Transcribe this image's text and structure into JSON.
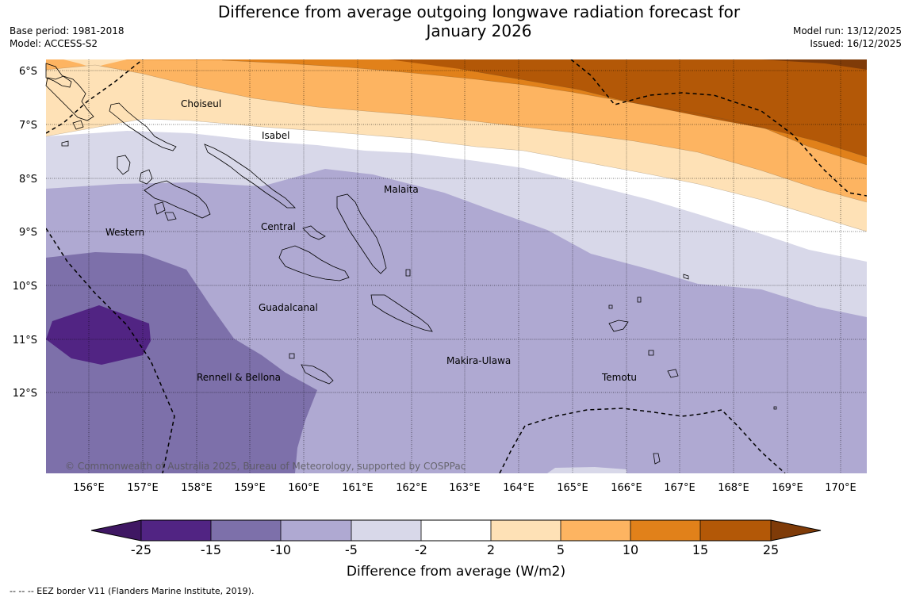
{
  "title": {
    "line1": "Difference from average outgoing longwave radiation forecast for",
    "line2": "January 2026"
  },
  "meta_left": {
    "base_period": "Base period: 1981-2018",
    "model": "Model: ACCESS-S2"
  },
  "meta_right": {
    "model_run": "Model run: 13/12/2025",
    "issued": "Issued: 16/12/2025"
  },
  "map": {
    "lat_labels": [
      "6°S",
      "7°S",
      "8°S",
      "9°S",
      "10°S",
      "11°S",
      "12°S"
    ],
    "lon_labels": [
      "156°E",
      "157°E",
      "158°E",
      "159°E",
      "160°E",
      "161°E",
      "162°E",
      "163°E",
      "164°E",
      "165°E",
      "166°E",
      "167°E",
      "168°E",
      "169°E",
      "170°E"
    ],
    "provinces": [
      "Choiseul",
      "Isabel",
      "Malaita",
      "Western",
      "Central",
      "Guadalcanal",
      "Makira-Ulawa",
      "Rennell & Bellona",
      "Temotu"
    ],
    "copyright": "© Commonwealth of Australia 2025, Bureau of Meteorology, supported by COSPPac"
  },
  "legend": {
    "ticks": [
      "-25",
      "-15",
      "-10",
      "-5",
      "-2",
      "2",
      "5",
      "10",
      "15",
      "25"
    ],
    "label": "Difference from average (W/m2)",
    "colors": [
      "#3f1763",
      "#512483",
      "#7d70aa",
      "#afa9d2",
      "#d8d8e9",
      "#ffffff",
      "#fee1b6",
      "#fdb461",
      "#e1811a",
      "#b35807",
      "#7f3b08"
    ]
  },
  "footnote": "--  --  -- EEZ border V11 (Flanders Marine Institute, 2019)."
}
